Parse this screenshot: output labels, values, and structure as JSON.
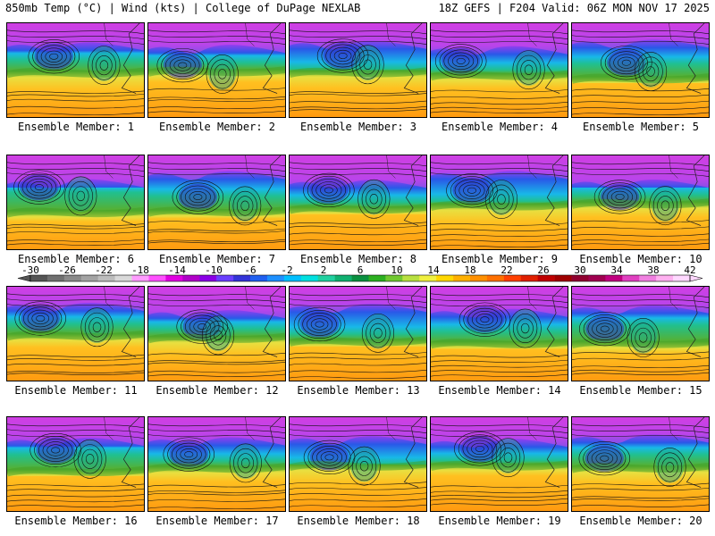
{
  "header": {
    "left": "850mb Temp (°C) | Wind (kts) | College of DuPage NEXLAB",
    "right": "18Z GEFS | F204 Valid: 06Z MON NOV 17 2025"
  },
  "members": [
    {
      "label": "Ensemble Member: 1"
    },
    {
      "label": "Ensemble Member: 2"
    },
    {
      "label": "Ensemble Member: 3"
    },
    {
      "label": "Ensemble Member: 4"
    },
    {
      "label": "Ensemble Member: 5"
    },
    {
      "label": "Ensemble Member: 6"
    },
    {
      "label": "Ensemble Member: 7"
    },
    {
      "label": "Ensemble Member: 8"
    },
    {
      "label": "Ensemble Member: 9"
    },
    {
      "label": "Ensemble Member: 10"
    },
    {
      "label": "Ensemble Member: 11"
    },
    {
      "label": "Ensemble Member: 12"
    },
    {
      "label": "Ensemble Member: 13"
    },
    {
      "label": "Ensemble Member: 14"
    },
    {
      "label": "Ensemble Member: 15"
    },
    {
      "label": "Ensemble Member: 16"
    },
    {
      "label": "Ensemble Member: 17"
    },
    {
      "label": "Ensemble Member: 18"
    },
    {
      "label": "Ensemble Member: 19"
    },
    {
      "label": "Ensemble Member: 20"
    }
  ],
  "colorbar": {
    "tick_labels": [
      "-30",
      "-26",
      "-22",
      "-18",
      "-14",
      "-10",
      "-6",
      "-2",
      "2",
      "6",
      "10",
      "14",
      "18",
      "22",
      "26",
      "30",
      "34",
      "38",
      "42"
    ],
    "colors": [
      "#555555",
      "#707070",
      "#8a8a8a",
      "#a3a3a3",
      "#bdbdbd",
      "#d9d9d9",
      "#ff9cff",
      "#ff50ff",
      "#e000e0",
      "#b000c8",
      "#8a00e6",
      "#6a40ff",
      "#3434d8",
      "#2060f0",
      "#1e90ff",
      "#00bfff",
      "#00e0e0",
      "#20d0a0",
      "#10b070",
      "#0a9040",
      "#2cb020",
      "#70c830",
      "#b8e040",
      "#f0f040",
      "#ffd700",
      "#ffb000",
      "#ff9000",
      "#ff7000",
      "#ff4000",
      "#e02000",
      "#c00000",
      "#a00000",
      "#900030",
      "#a00050",
      "#c00080",
      "#e040c0",
      "#f080e0",
      "#ffb0f0",
      "#ffd8ff"
    ]
  }
}
